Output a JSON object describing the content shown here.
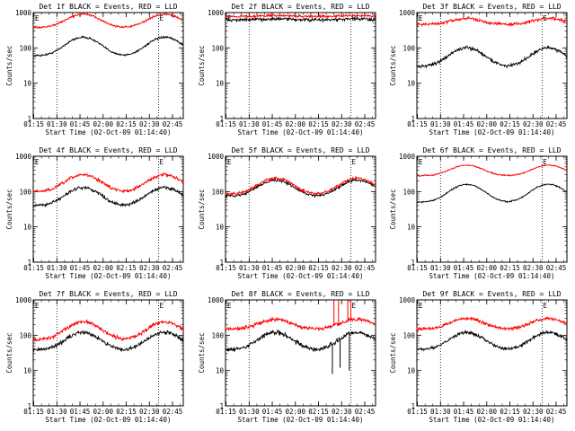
{
  "chart_data": [
    {
      "panel": "1f",
      "title": "Det 1f BLACK = Events, RED = LLD",
      "ylabel": "Counts/sec",
      "xlabel": "Start Time (02-Oct-09 01:14:40)",
      "marker": "E",
      "yscale": "log",
      "ylim": [
        1,
        1000
      ],
      "xticks": [
        "01:15",
        "01:30",
        "01:45",
        "02:00",
        "02:15",
        "02:30",
        "02:45"
      ],
      "vlines": [
        "01:30",
        "02:36"
      ],
      "series": [
        {
          "color": "#000000",
          "base": 60,
          "peak": 200,
          "noise": 0.03,
          "spikes": []
        },
        {
          "color": "#ff0000",
          "base": 380,
          "peak": 900,
          "noise": 0.03,
          "spikes": []
        }
      ]
    },
    {
      "panel": "2f",
      "title": "Det 2f BLACK = Events, RED = LLD",
      "ylabel": "Counts/sec",
      "xlabel": "Start Time (02-Oct-09 01:14:40)",
      "marker": "E",
      "yscale": "log",
      "ylim": [
        1,
        1000
      ],
      "xticks": [
        "01:15",
        "01:30",
        "01:45",
        "02:00",
        "02:15",
        "02:30",
        "02:45"
      ],
      "vlines": [
        "01:30",
        "02:36"
      ],
      "series": [
        {
          "color": "#000000",
          "base": 620,
          "peak": 660,
          "noise": 0.05,
          "spikes": []
        },
        {
          "color": "#ff0000",
          "base": 780,
          "peak": 820,
          "noise": 0.04,
          "spikes": []
        }
      ]
    },
    {
      "panel": "3f",
      "title": "Det 3f BLACK = Events, RED = LLD",
      "ylabel": "Counts/sec",
      "xlabel": "Start Time (02-Oct-09 01:14:40)",
      "marker": "E",
      "yscale": "log",
      "ylim": [
        1,
        1000
      ],
      "xticks": [
        "01:15",
        "01:30",
        "01:45",
        "02:00",
        "02:15",
        "02:30",
        "02:45"
      ],
      "vlines": [
        "01:30",
        "02:36"
      ],
      "series": [
        {
          "color": "#000000",
          "base": 30,
          "peak": 100,
          "noise": 0.05,
          "spikes": []
        },
        {
          "color": "#ff0000",
          "base": 460,
          "peak": 680,
          "noise": 0.05,
          "spikes": []
        }
      ]
    },
    {
      "panel": "4f",
      "title": "Det 4f BLACK = Events, RED = LLD",
      "ylabel": "Counts/sec",
      "xlabel": "Start Time (02-Oct-09 01:14:40)",
      "marker": "E",
      "yscale": "log",
      "ylim": [
        1,
        1000
      ],
      "xticks": [
        "01:15",
        "01:30",
        "01:45",
        "02:00",
        "02:15",
        "02:30",
        "02:45"
      ],
      "vlines": [
        "01:30",
        "02:36"
      ],
      "series": [
        {
          "color": "#000000",
          "base": 40,
          "peak": 130,
          "noise": 0.05,
          "spikes": []
        },
        {
          "color": "#ff0000",
          "base": 100,
          "peak": 300,
          "noise": 0.05,
          "spikes": []
        }
      ]
    },
    {
      "panel": "5f",
      "title": "Det 5f BLACK = Events, RED = LLD",
      "ylabel": "Counts/sec",
      "xlabel": "Start Time (02-Oct-09 01:14:40)",
      "marker": "E",
      "yscale": "log",
      "ylim": [
        1,
        1000
      ],
      "xticks": [
        "01:15",
        "01:30",
        "01:45",
        "02:00",
        "02:15",
        "02:30",
        "02:45"
      ],
      "vlines": [
        "01:30",
        "02:36"
      ],
      "series": [
        {
          "color": "#000000",
          "base": 75,
          "peak": 210,
          "noise": 0.04,
          "spikes": []
        },
        {
          "color": "#ff0000",
          "base": 85,
          "peak": 240,
          "noise": 0.04,
          "spikes": []
        }
      ]
    },
    {
      "panel": "6f",
      "title": "Det 6f BLACK = Events, RED = LLD",
      "ylabel": "Counts/sec",
      "xlabel": "Start Time (02-Oct-09 01:14:40)",
      "marker": "E",
      "yscale": "log",
      "ylim": [
        1,
        1000
      ],
      "xticks": [
        "01:15",
        "01:30",
        "01:45",
        "02:00",
        "02:15",
        "02:30",
        "02:45"
      ],
      "vlines": [
        "01:30",
        "02:36"
      ],
      "series": [
        {
          "color": "#000000",
          "base": 50,
          "peak": 160,
          "noise": 0.02,
          "spikes": []
        },
        {
          "color": "#ff0000",
          "base": 280,
          "peak": 560,
          "noise": 0.02,
          "spikes": []
        }
      ]
    },
    {
      "panel": "7f",
      "title": "Det 7f BLACK = Events, RED = LLD",
      "ylabel": "Counts/sec",
      "xlabel": "Start Time (02-Oct-09 01:14:40)",
      "marker": "E",
      "yscale": "log",
      "ylim": [
        1,
        1000
      ],
      "xticks": [
        "01:15",
        "01:30",
        "01:45",
        "02:00",
        "02:15",
        "02:30",
        "02:45"
      ],
      "vlines": [
        "01:30",
        "02:36"
      ],
      "series": [
        {
          "color": "#000000",
          "base": 38,
          "peak": 120,
          "noise": 0.06,
          "spikes": []
        },
        {
          "color": "#ff0000",
          "base": 75,
          "peak": 240,
          "noise": 0.06,
          "spikes": []
        }
      ]
    },
    {
      "panel": "8f",
      "title": "Det 8f BLACK = Events, RED = LLD",
      "ylabel": "Counts/sec",
      "xlabel": "Start Time (02-Oct-09 01:14:40)",
      "marker": "E",
      "yscale": "log",
      "ylim": [
        1,
        1000
      ],
      "xticks": [
        "01:15",
        "01:30",
        "01:45",
        "02:00",
        "02:15",
        "02:30",
        "02:45"
      ],
      "vlines": [
        "01:30",
        "02:36"
      ],
      "series": [
        {
          "color": "#000000",
          "base": 38,
          "peak": 120,
          "noise": 0.07,
          "spikes": [
            {
              "t": "02:24",
              "v": 8
            },
            {
              "t": "02:29",
              "v": 12
            },
            {
              "t": "02:35",
              "v": 10
            }
          ]
        },
        {
          "color": "#ff0000",
          "base": 150,
          "peak": 280,
          "noise": 0.06,
          "spikes": [
            {
              "t": "02:25",
              "v": 1000
            },
            {
              "t": "02:28",
              "v": 1000
            },
            {
              "t": "02:34",
              "v": 1000
            },
            {
              "t": "02:36",
              "v": 1000
            }
          ]
        }
      ]
    },
    {
      "panel": "9f",
      "title": "Det 9f BLACK = Events, RED = LLD",
      "ylabel": "Counts/sec",
      "xlabel": "Start Time (02-Oct-09 01:14:40)",
      "marker": "E",
      "yscale": "log",
      "ylim": [
        1,
        1000
      ],
      "xticks": [
        "01:15",
        "01:30",
        "01:45",
        "02:00",
        "02:15",
        "02:30",
        "02:45"
      ],
      "vlines": [
        "01:30",
        "02:36"
      ],
      "series": [
        {
          "color": "#000000",
          "base": 40,
          "peak": 120,
          "noise": 0.05,
          "spikes": []
        },
        {
          "color": "#ff0000",
          "base": 150,
          "peak": 300,
          "noise": 0.05,
          "spikes": []
        }
      ]
    }
  ]
}
